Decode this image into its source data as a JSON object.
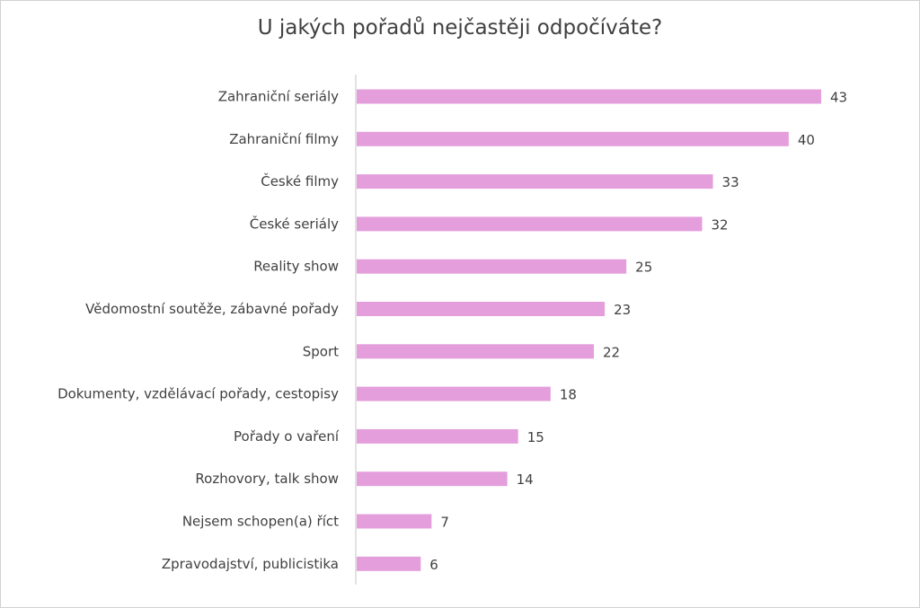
{
  "chart_data": {
    "type": "bar",
    "orientation": "horizontal",
    "title": "U jakých pořadů nejčastěji odpočíváte?",
    "categories": [
      "Zahraniční seriály",
      "Zahraniční filmy",
      "České filmy",
      "České seriály",
      "Reality show",
      "Vědomostní soutěže, zábavné pořady",
      "Sport",
      "Dokumenty, vzdělávací pořady, cestopisy",
      "Pořady o vaření",
      "Rozhovory, talk show",
      "Nejsem schopen(a) říct",
      "Zpravodajství, publicistika"
    ],
    "values": [
      43,
      40,
      33,
      32,
      25,
      23,
      22,
      18,
      15,
      14,
      7,
      6
    ],
    "xlabel": "",
    "ylabel": "",
    "xlim": [
      0,
      43
    ],
    "grid": false,
    "legend": "none",
    "bar_color": "#E49EDC"
  }
}
